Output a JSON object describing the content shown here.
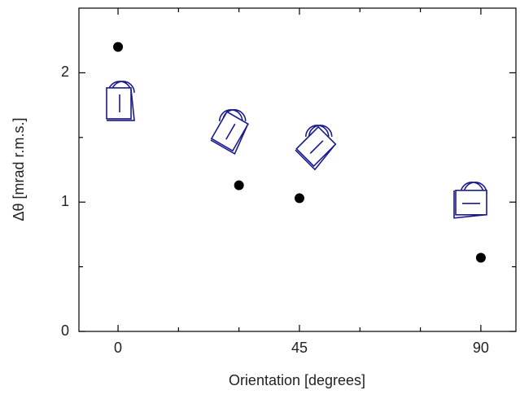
{
  "chart_data": {
    "type": "scatter",
    "xlabel": "Orientation [degrees]",
    "ylabel": "Δθ [mrad r.m.s.]",
    "series": [
      {
        "color": "#000000",
        "marker": "dot",
        "x": [
          0,
          30,
          45,
          90
        ],
        "values": [
          2.2,
          1.13,
          1.03,
          0.57
        ]
      },
      {
        "color": "#1a1a8c",
        "marker": "icon",
        "x": [
          0.4,
          28,
          49.4,
          87.8
        ],
        "values": [
          1.77,
          1.55,
          1.43,
          0.99
        ]
      }
    ],
    "xlim": [
      -9.7,
      98.7
    ],
    "xticks": [
      0,
      45,
      90
    ],
    "xminor": [
      15,
      30,
      60,
      75
    ],
    "ylim": [
      0,
      2.5
    ],
    "yticks": [
      0,
      1,
      2
    ],
    "yminor": [
      0.5,
      1.5
    ],
    "grid": false
  }
}
